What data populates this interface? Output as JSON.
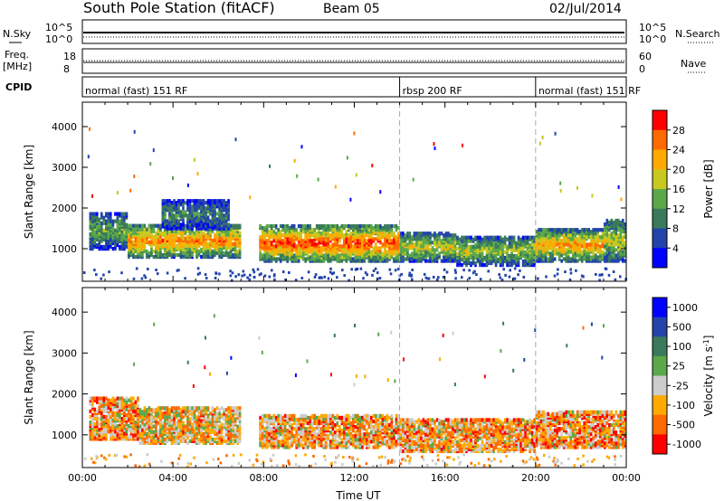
{
  "header": {
    "station": "South Pole Station (fitACF)",
    "beam": "Beam 05",
    "date": "02/Jul/2014"
  },
  "strips": {
    "nsky_label": "N.Sky",
    "nsearch_label": "N.Search",
    "nsky_ticks": [
      "10^5",
      "10^0"
    ],
    "freq_label_1": "Freq.",
    "freq_label_2": "[MHz]",
    "freq_ticks": [
      "18",
      "8"
    ],
    "nave_label": "Nave",
    "nave_ticks": [
      "60",
      "0"
    ],
    "cpid_label": "CPID"
  },
  "cpid_segments": [
    {
      "start_hour": 0,
      "end_hour": 14,
      "label": "normal (fast) 151 RF"
    },
    {
      "start_hour": 14,
      "end_hour": 20,
      "label": "rbsp 200 RF"
    },
    {
      "start_hour": 20,
      "end_hour": 24,
      "label": "normal (fast) 151 RF"
    }
  ],
  "colors": {
    "power_scale": [
      "#0000ff",
      "#2244aa",
      "#3a7a5a",
      "#5aa84a",
      "#c8c820",
      "#ffaa00",
      "#ff6a00",
      "#ff0000"
    ],
    "velocity_scale": [
      "#0000ff",
      "#2244aa",
      "#3a7a5a",
      "#5aa84a",
      "#cccccc",
      "#ffaa00",
      "#ff6a00",
      "#ff0000"
    ],
    "gate_divider": "#aaaaaa"
  },
  "chart_data": [
    {
      "type": "heatmap",
      "name": "power-panel",
      "xlabel": "",
      "ylabel": "Slant Range [km]",
      "xlim": [
        0,
        24
      ],
      "ylim": [
        200,
        4600
      ],
      "yticks": [
        1000,
        2000,
        3000,
        4000
      ],
      "colorbar": {
        "title": "Power [dB]",
        "ticks": [
          "4",
          "8",
          "12",
          "16",
          "20",
          "24",
          "28"
        ],
        "range": [
          0,
          32
        ]
      },
      "gridlines_x_hours": [
        14,
        20
      ],
      "backscatter_bands": [
        {
          "t0": 0.3,
          "t1": 2.0,
          "r0": 1000,
          "r1": 1900,
          "level": 0.45
        },
        {
          "t0": 2.0,
          "t1": 7.0,
          "r0": 800,
          "r1": 1600,
          "level": 0.8
        },
        {
          "t0": 3.5,
          "t1": 6.5,
          "r0": 1500,
          "r1": 2200,
          "level": 0.35
        },
        {
          "t0": 7.8,
          "t1": 14.0,
          "r0": 700,
          "r1": 1600,
          "level": 0.9
        },
        {
          "t0": 14.0,
          "t1": 16.5,
          "r0": 700,
          "r1": 1400,
          "level": 0.6
        },
        {
          "t0": 16.5,
          "t1": 20.0,
          "r0": 600,
          "r1": 1300,
          "level": 0.55
        },
        {
          "t0": 20.0,
          "t1": 23.0,
          "r0": 700,
          "r1": 1500,
          "level": 0.75
        },
        {
          "t0": 23.0,
          "t1": 24.0,
          "r0": 700,
          "r1": 1700,
          "level": 0.6
        }
      ]
    },
    {
      "type": "heatmap",
      "name": "velocity-panel",
      "xlabel": "Time UT",
      "ylabel": "Slant Range [km]",
      "xlim": [
        0,
        24
      ],
      "ylim": [
        200,
        4600
      ],
      "yticks": [
        1000,
        2000,
        3000,
        4000
      ],
      "xticks": [
        "00:00",
        "04:00",
        "08:00",
        "12:00",
        "16:00",
        "20:00",
        "00:00"
      ],
      "colorbar": {
        "title": "Velocity [m s",
        "title_sup": "-1",
        "title_end": "]",
        "ticks": [
          "1000",
          "500",
          "100",
          "25",
          "-25",
          "-100",
          "-500",
          "-1000"
        ]
      },
      "gridlines_x_hours": [
        14,
        20
      ],
      "backscatter_bands": [
        {
          "t0": 0.3,
          "t1": 2.5,
          "r0": 900,
          "r1": 1900,
          "level": 0.7
        },
        {
          "t0": 2.5,
          "t1": 7.0,
          "r0": 800,
          "r1": 1700,
          "level": 0.65
        },
        {
          "t0": 7.8,
          "t1": 14.0,
          "r0": 700,
          "r1": 1500,
          "level": 0.68
        },
        {
          "t0": 14.0,
          "t1": 20.0,
          "r0": 600,
          "r1": 1400,
          "level": 0.7
        },
        {
          "t0": 20.0,
          "t1": 24.0,
          "r0": 700,
          "r1": 1600,
          "level": 0.72
        }
      ]
    }
  ]
}
